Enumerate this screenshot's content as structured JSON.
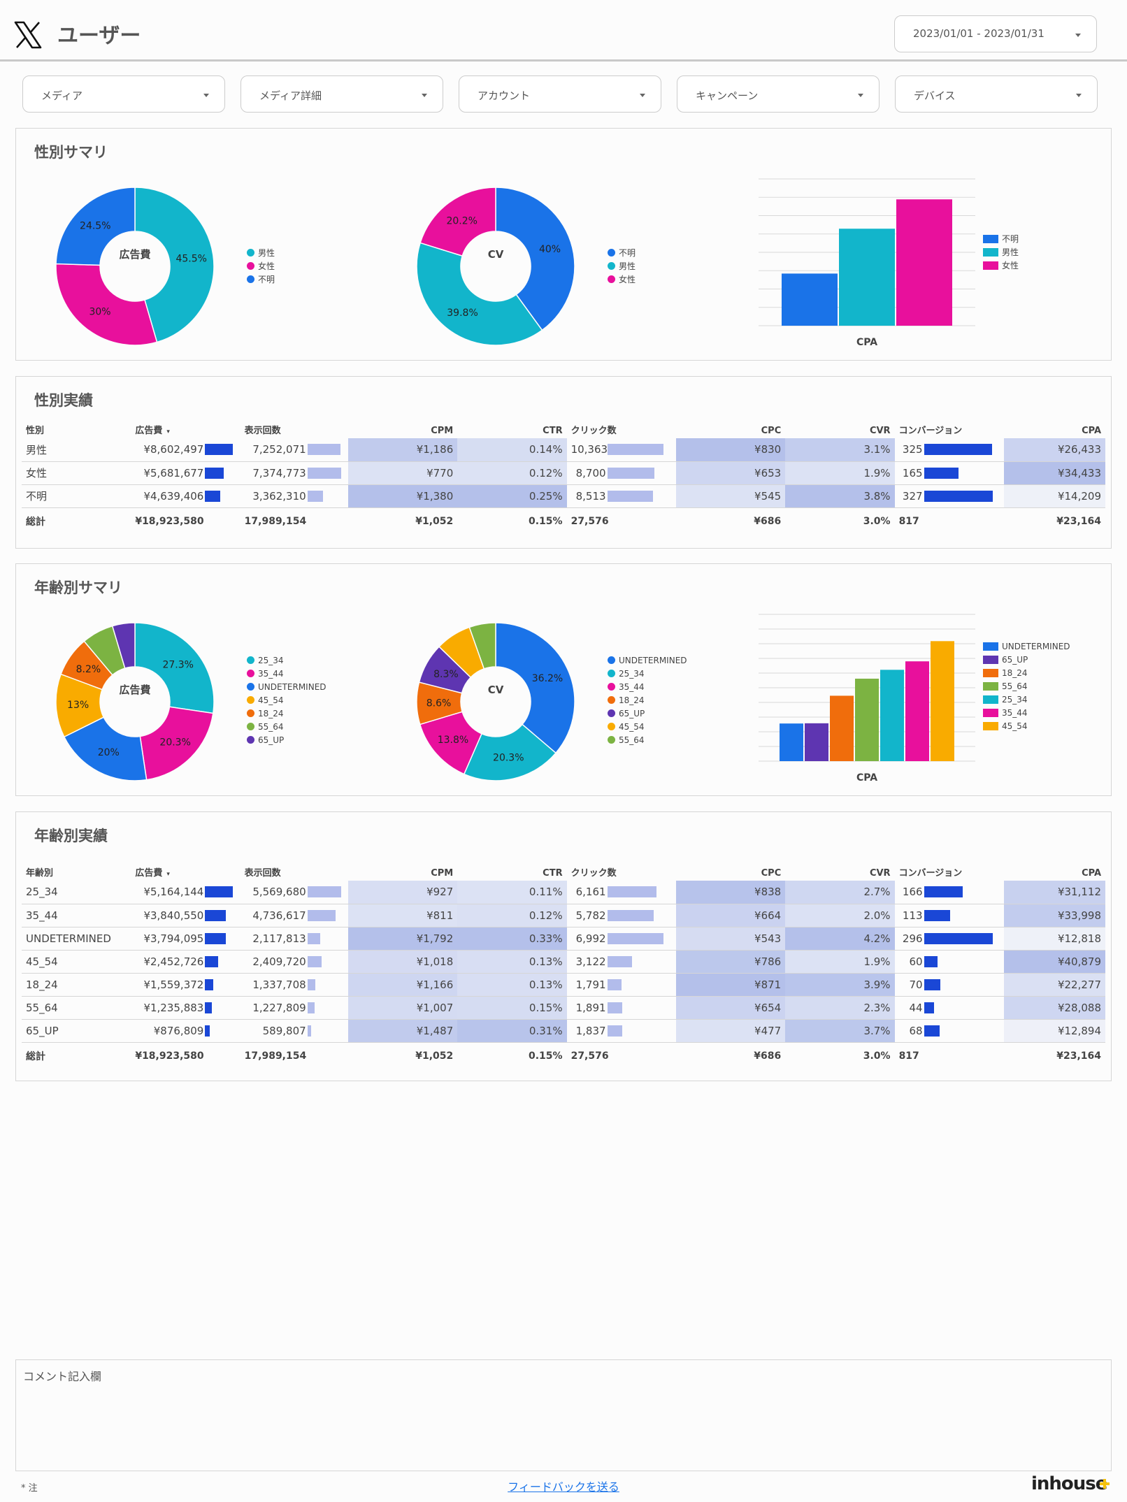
{
  "header": {
    "title": "ユーザー",
    "date_range": "2023/01/01 - 2023/01/31"
  },
  "filters": [
    "メディア",
    "メディア詳細",
    "アカウント",
    "キャンペーン",
    "デバイス"
  ],
  "gender_summary": {
    "title": "性別サマリ"
  },
  "gender_table": {
    "title": "性別実績"
  },
  "age_summary": {
    "title": "年齢別サマリ"
  },
  "age_table": {
    "title": "年齢別実績"
  },
  "colors": {
    "男性": "#12b5cb",
    "女性": "#e8109c",
    "不明": "#1a73e8",
    "25_34": "#12b5cb",
    "35_44": "#e8109c",
    "UNDETERMINED": "#1a73e8",
    "45_54": "#f9ab00",
    "18_24": "#f06d0c",
    "55_64": "#7cb342",
    "65_UP": "#5e35b1",
    "bar_strong": "#1a47d6",
    "bar_light": "#b2bceb"
  },
  "chart_data": [
    {
      "type": "pie",
      "id": "gender_spend",
      "center_label": "広告費",
      "categories": [
        "男性",
        "女性",
        "不明"
      ],
      "values": [
        45.5,
        30,
        24.5
      ],
      "labels": [
        "45.5%",
        "30%",
        "24.5%"
      ],
      "legend": [
        "男性",
        "女性",
        "不明"
      ]
    },
    {
      "type": "pie",
      "id": "gender_cv",
      "center_label": "CV",
      "categories": [
        "不明",
        "男性",
        "女性"
      ],
      "values": [
        40,
        39.8,
        20.2
      ],
      "labels": [
        "40%",
        "39.8%",
        "20.2%"
      ],
      "legend": [
        "不明",
        "男性",
        "女性"
      ]
    },
    {
      "type": "bar",
      "id": "gender_cpa",
      "xlabel": "CPA",
      "categories": [
        "不明",
        "男性",
        "女性"
      ],
      "values": [
        14209,
        26433,
        34433
      ],
      "ylim": [
        0,
        40000
      ],
      "legend": [
        "不明",
        "男性",
        "女性"
      ]
    },
    {
      "type": "pie",
      "id": "age_spend",
      "center_label": "広告費",
      "categories": [
        "25_34",
        "35_44",
        "UNDETERMINED",
        "45_54",
        "18_24",
        "55_64",
        "65_UP"
      ],
      "values": [
        27.3,
        20.3,
        20,
        13,
        8.2,
        6.5,
        4.6
      ],
      "labels": [
        "27.3%",
        "20.3%",
        "20%",
        "13%",
        "8.2%",
        "",
        ""
      ],
      "legend": [
        "25_34",
        "35_44",
        "UNDETERMINED",
        "45_54",
        "18_24",
        "55_64",
        "65_UP"
      ]
    },
    {
      "type": "pie",
      "id": "age_cv",
      "center_label": "CV",
      "categories": [
        "UNDETERMINED",
        "25_34",
        "35_44",
        "18_24",
        "65_UP",
        "45_54",
        "55_64"
      ],
      "values": [
        36.2,
        20.3,
        13.8,
        8.6,
        8.3,
        7.3,
        5.4
      ],
      "labels": [
        "36.2%",
        "20.3%",
        "13.8%",
        "8.6%",
        "8.3%",
        "",
        ""
      ],
      "legend": [
        "UNDETERMINED",
        "25_34",
        "35_44",
        "18_24",
        "65_UP",
        "45_54",
        "55_64"
      ]
    },
    {
      "type": "bar",
      "id": "age_cpa",
      "xlabel": "CPA",
      "categories": [
        "UNDETERMINED",
        "65_UP",
        "18_24",
        "55_64",
        "25_34",
        "35_44",
        "45_54"
      ],
      "values": [
        12818,
        12894,
        22277,
        28088,
        31112,
        33998,
        40879
      ],
      "ylim": [
        0,
        50000
      ],
      "legend": [
        "UNDETERMINED",
        "65_UP",
        "18_24",
        "55_64",
        "25_34",
        "35_44",
        "45_54"
      ]
    }
  ],
  "gender_rows": {
    "headers": [
      "性別",
      "広告費",
      "表示回数",
      "CPM",
      "CTR",
      "クリック数",
      "CPC",
      "CVR",
      "コンバージョン",
      "CPA"
    ],
    "sort_marker": "▾",
    "rows": [
      {
        "label": "男性",
        "cost": "¥8,602,497",
        "cost_n": 8602497,
        "imp": "7,252,071",
        "imp_n": 7252071,
        "cpm": "¥1,186",
        "cpm_n": 1186,
        "ctr": "0.14%",
        "ctr_n": 0.14,
        "clicks": "10,363",
        "clicks_n": 10363,
        "cpc": "¥830",
        "cpc_n": 830,
        "cvr": "3.1%",
        "cvr_n": 3.1,
        "cv": "325",
        "cv_n": 325,
        "cpa": "¥26,433",
        "cpa_n": 26433
      },
      {
        "label": "女性",
        "cost": "¥5,681,677",
        "cost_n": 5681677,
        "imp": "7,374,773",
        "imp_n": 7374773,
        "cpm": "¥770",
        "cpm_n": 770,
        "ctr": "0.12%",
        "ctr_n": 0.12,
        "clicks": "8,700",
        "clicks_n": 8700,
        "cpc": "¥653",
        "cpc_n": 653,
        "cvr": "1.9%",
        "cvr_n": 1.9,
        "cv": "165",
        "cv_n": 165,
        "cpa": "¥34,433",
        "cpa_n": 34433
      },
      {
        "label": "不明",
        "cost": "¥4,639,406",
        "cost_n": 4639406,
        "imp": "3,362,310",
        "imp_n": 3362310,
        "cpm": "¥1,380",
        "cpm_n": 1380,
        "ctr": "0.25%",
        "ctr_n": 0.25,
        "clicks": "8,513",
        "clicks_n": 8513,
        "cpc": "¥545",
        "cpc_n": 545,
        "cvr": "3.8%",
        "cvr_n": 3.8,
        "cv": "327",
        "cv_n": 327,
        "cpa": "¥14,209",
        "cpa_n": 14209
      }
    ],
    "total": {
      "label": "総計",
      "cost": "¥18,923,580",
      "imp": "17,989,154",
      "cpm": "¥1,052",
      "ctr": "0.15%",
      "clicks": "27,576",
      "cpc": "¥686",
      "cvr": "3.0%",
      "cv": "817",
      "cpa": "¥23,164"
    }
  },
  "age_rows": {
    "headers": [
      "年齢別",
      "広告費",
      "表示回数",
      "CPM",
      "CTR",
      "クリック数",
      "CPC",
      "CVR",
      "コンバージョン",
      "CPA"
    ],
    "sort_marker": "▾",
    "rows": [
      {
        "label": "25_34",
        "cost": "¥5,164,144",
        "cost_n": 5164144,
        "imp": "5,569,680",
        "imp_n": 5569680,
        "cpm": "¥927",
        "cpm_n": 927,
        "ctr": "0.11%",
        "ctr_n": 0.11,
        "clicks": "6,161",
        "clicks_n": 6161,
        "cpc": "¥838",
        "cpc_n": 838,
        "cvr": "2.7%",
        "cvr_n": 2.7,
        "cv": "166",
        "cv_n": 166,
        "cpa": "¥31,112",
        "cpa_n": 31112
      },
      {
        "label": "35_44",
        "cost": "¥3,840,550",
        "cost_n": 3840550,
        "imp": "4,736,617",
        "imp_n": 4736617,
        "cpm": "¥811",
        "cpm_n": 811,
        "ctr": "0.12%",
        "ctr_n": 0.12,
        "clicks": "5,782",
        "clicks_n": 5782,
        "cpc": "¥664",
        "cpc_n": 664,
        "cvr": "2.0%",
        "cvr_n": 2.0,
        "cv": "113",
        "cv_n": 113,
        "cpa": "¥33,998",
        "cpa_n": 33998
      },
      {
        "label": "UNDETERMINED",
        "cost": "¥3,794,095",
        "cost_n": 3794095,
        "imp": "2,117,813",
        "imp_n": 2117813,
        "cpm": "¥1,792",
        "cpm_n": 1792,
        "ctr": "0.33%",
        "ctr_n": 0.33,
        "clicks": "6,992",
        "clicks_n": 6992,
        "cpc": "¥543",
        "cpc_n": 543,
        "cvr": "4.2%",
        "cvr_n": 4.2,
        "cv": "296",
        "cv_n": 296,
        "cpa": "¥12,818",
        "cpa_n": 12818
      },
      {
        "label": "45_54",
        "cost": "¥2,452,726",
        "cost_n": 2452726,
        "imp": "2,409,720",
        "imp_n": 2409720,
        "cpm": "¥1,018",
        "cpm_n": 1018,
        "ctr": "0.13%",
        "ctr_n": 0.13,
        "clicks": "3,122",
        "clicks_n": 3122,
        "cpc": "¥786",
        "cpc_n": 786,
        "cvr": "1.9%",
        "cvr_n": 1.9,
        "cv": "60",
        "cv_n": 60,
        "cpa": "¥40,879",
        "cpa_n": 40879
      },
      {
        "label": "18_24",
        "cost": "¥1,559,372",
        "cost_n": 1559372,
        "imp": "1,337,708",
        "imp_n": 1337708,
        "cpm": "¥1,166",
        "cpm_n": 1166,
        "ctr": "0.13%",
        "ctr_n": 0.13,
        "clicks": "1,791",
        "clicks_n": 1791,
        "cpc": "¥871",
        "cpc_n": 871,
        "cvr": "3.9%",
        "cvr_n": 3.9,
        "cv": "70",
        "cv_n": 70,
        "cpa": "¥22,277",
        "cpa_n": 22277
      },
      {
        "label": "55_64",
        "cost": "¥1,235,883",
        "cost_n": 1235883,
        "imp": "1,227,809",
        "imp_n": 1227809,
        "cpm": "¥1,007",
        "cpm_n": 1007,
        "ctr": "0.15%",
        "ctr_n": 0.15,
        "clicks": "1,891",
        "clicks_n": 1891,
        "cpc": "¥654",
        "cpc_n": 654,
        "cvr": "2.3%",
        "cvr_n": 2.3,
        "cv": "44",
        "cv_n": 44,
        "cpa": "¥28,088",
        "cpa_n": 28088
      },
      {
        "label": "65_UP",
        "cost": "¥876,809",
        "cost_n": 876809,
        "imp": "589,807",
        "imp_n": 589807,
        "cpm": "¥1,487",
        "cpm_n": 1487,
        "ctr": "0.31%",
        "ctr_n": 0.31,
        "clicks": "1,837",
        "clicks_n": 1837,
        "cpc": "¥477",
        "cpc_n": 477,
        "cvr": "3.7%",
        "cvr_n": 3.7,
        "cv": "68",
        "cv_n": 68,
        "cpa": "¥12,894",
        "cpa_n": 12894
      }
    ],
    "total": {
      "label": "総計",
      "cost": "¥18,923,580",
      "imp": "17,989,154",
      "cpm": "¥1,052",
      "ctr": "0.15%",
      "clicks": "27,576",
      "cpc": "¥686",
      "cvr": "3.0%",
      "cv": "817",
      "cpa": "¥23,164"
    }
  },
  "comment": {
    "label": "コメント記入欄"
  },
  "footer": {
    "note": "* 注",
    "feedback": "フィードバックを送る",
    "brand": "inhouse"
  }
}
